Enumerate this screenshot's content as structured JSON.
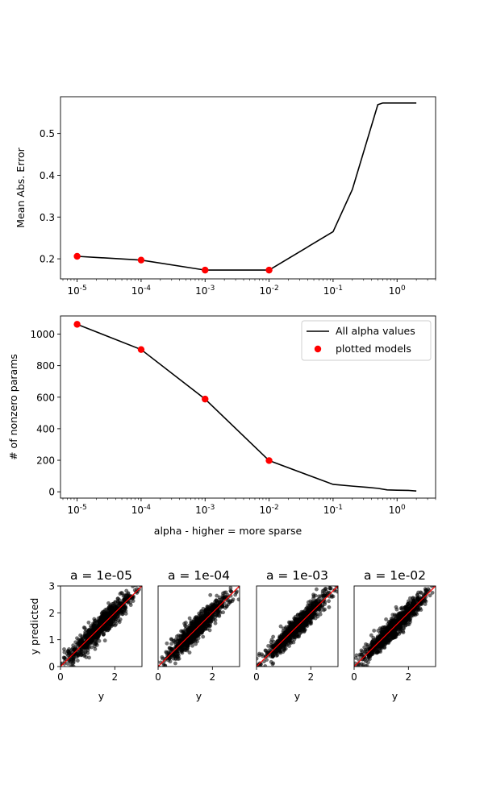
{
  "chart_data": [
    {
      "type": "line",
      "id": "mae",
      "ylabel": "Mean Abs. Error",
      "xscale": "log",
      "xlim": [
        5.5e-06,
        4
      ],
      "ylim": [
        0.152,
        0.588
      ],
      "xticks": [
        {
          "value": 1e-05,
          "exp": "-5"
        },
        {
          "value": 0.0001,
          "exp": "-4"
        },
        {
          "value": 0.001,
          "exp": "-3"
        },
        {
          "value": 0.01,
          "exp": "-2"
        },
        {
          "value": 0.1,
          "exp": "-1"
        },
        {
          "value": 1,
          "exp": "0"
        }
      ],
      "yticks": [
        "0.2",
        "0.3",
        "0.4",
        "0.5"
      ],
      "series": [
        {
          "kind": "line",
          "color": "#000000",
          "x": [
            1e-05,
            0.0001,
            0.001,
            0.01,
            0.1,
            0.2,
            0.5,
            0.6,
            1,
            2
          ],
          "y": [
            0.206,
            0.197,
            0.173,
            0.173,
            0.265,
            0.366,
            0.569,
            0.573,
            0.573,
            0.573
          ]
        },
        {
          "kind": "scatter",
          "color": "#ff0000",
          "x": [
            1e-05,
            0.0001,
            0.001,
            0.01
          ],
          "y": [
            0.206,
            0.197,
            0.173,
            0.173
          ]
        }
      ]
    },
    {
      "type": "line",
      "id": "nonzero",
      "ylabel": "# of nonzero params",
      "xlabel": "alpha - higher = more sparse",
      "xscale": "log",
      "xlim": [
        5.5e-06,
        4
      ],
      "ylim": [
        -40,
        1115
      ],
      "xticks": [
        {
          "value": 1e-05,
          "exp": "-5"
        },
        {
          "value": 0.0001,
          "exp": "-4"
        },
        {
          "value": 0.001,
          "exp": "-3"
        },
        {
          "value": 0.01,
          "exp": "-2"
        },
        {
          "value": 0.1,
          "exp": "-1"
        },
        {
          "value": 1,
          "exp": "0"
        }
      ],
      "yticks": [
        "0",
        "200",
        "400",
        "600",
        "800",
        "1000"
      ],
      "legend": {
        "position": "top-right",
        "entries": [
          "All alpha values",
          "plotted models"
        ]
      },
      "series": [
        {
          "kind": "line",
          "name": "All alpha values",
          "color": "#000000",
          "x": [
            1e-05,
            0.0001,
            0.001,
            0.01,
            0.1,
            0.2,
            0.35,
            0.5,
            0.7,
            1,
            1.5,
            2
          ],
          "y": [
            1062,
            902,
            588,
            198,
            47,
            36,
            28,
            22,
            12,
            10,
            9,
            5
          ]
        },
        {
          "kind": "scatter",
          "name": "plotted models",
          "color": "#ff0000",
          "x": [
            1e-05,
            0.0001,
            0.001,
            0.01
          ],
          "y": [
            1062,
            902,
            588,
            198
          ]
        }
      ]
    },
    {
      "type": "scatter",
      "id": "pred1",
      "title": "a = 1e-05",
      "xlabel": "y",
      "ylabel": "y predicted",
      "xlim": [
        0,
        3
      ],
      "ylim": [
        0,
        3
      ],
      "xticks": [
        "0",
        "2"
      ],
      "yticks": [
        "0",
        "1",
        "2",
        "3"
      ],
      "point_color": "#000000",
      "point_opacity": 0.55,
      "n_points": 900,
      "spread": 0.22,
      "reference_line": {
        "color": "#ff0000",
        "from": [
          0,
          0
        ],
        "to": [
          3,
          3
        ]
      }
    },
    {
      "type": "scatter",
      "id": "pred2",
      "title": "a = 1e-04",
      "xlabel": "y",
      "ylabel": "",
      "xlim": [
        0,
        3
      ],
      "ylim": [
        0,
        3
      ],
      "xticks": [
        "0",
        "2"
      ],
      "yticks": [],
      "point_color": "#000000",
      "point_opacity": 0.55,
      "n_points": 900,
      "spread": 0.21,
      "reference_line": {
        "color": "#ff0000",
        "from": [
          0,
          0
        ],
        "to": [
          3,
          3
        ]
      }
    },
    {
      "type": "scatter",
      "id": "pred3",
      "title": "a = 1e-03",
      "xlabel": "y",
      "ylabel": "",
      "xlim": [
        0,
        3
      ],
      "ylim": [
        0,
        3
      ],
      "xticks": [
        "0",
        "2"
      ],
      "yticks": [],
      "point_color": "#000000",
      "point_opacity": 0.55,
      "n_points": 900,
      "spread": 0.19,
      "reference_line": {
        "color": "#ff0000",
        "from": [
          0,
          0
        ],
        "to": [
          3,
          3
        ]
      }
    },
    {
      "type": "scatter",
      "id": "pred4",
      "title": "a = 1e-02",
      "xlabel": "y",
      "ylabel": "",
      "xlim": [
        0,
        3
      ],
      "ylim": [
        0,
        3
      ],
      "xticks": [
        "0",
        "2"
      ],
      "yticks": [],
      "point_color": "#000000",
      "point_opacity": 0.55,
      "n_points": 900,
      "spread": 0.19,
      "reference_line": {
        "color": "#ff0000",
        "from": [
          0,
          0
        ],
        "to": [
          3,
          3
        ]
      }
    }
  ]
}
